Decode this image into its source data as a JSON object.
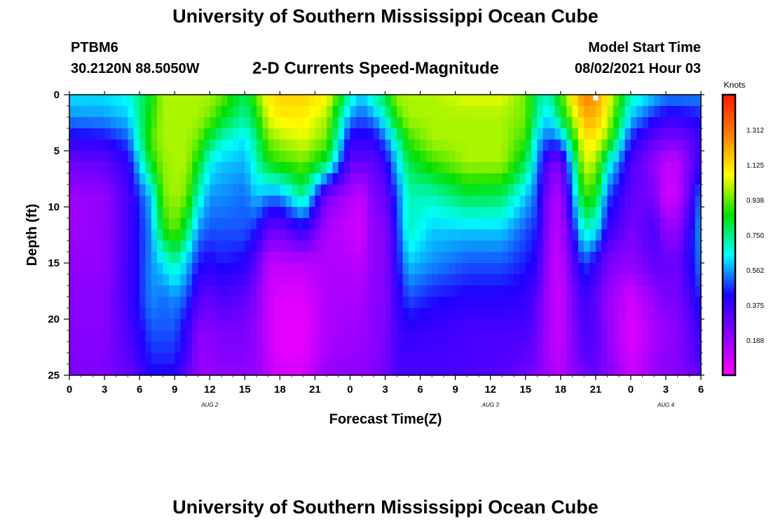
{
  "header": {
    "title": "University of Southern Mississippi Ocean Cube",
    "station_id": "PTBM6",
    "station_coords": "30.2120N  88.5050W",
    "product_title": "2-D Currents Speed-Magnitude",
    "model_start_label": "Model Start Time",
    "model_start_time": "08/02/2021 Hour 03"
  },
  "footer": {
    "title": "University of Southern Mississippi Ocean Cube"
  },
  "chart_data": {
    "type": "heatmap",
    "title": "2-D Currents Speed-Magnitude",
    "xlabel": "Forecast Time(Z)",
    "ylabel": "Depth (ft)",
    "x_tick_labels": [
      "0",
      "3",
      "6",
      "9",
      "12",
      "15",
      "18",
      "21",
      "0",
      "3",
      "6",
      "9",
      "12",
      "15",
      "18",
      "21",
      "0",
      "3",
      "6"
    ],
    "x_date_labels": [
      {
        "label": "AUG 2",
        "hour": 12
      },
      {
        "label": "AUG 3",
        "hour": 36
      },
      {
        "label": "AUG 4",
        "hour": 51
      }
    ],
    "xlim_hours": [
      0,
      54
    ],
    "ylim_ft": [
      0,
      25
    ],
    "y_ticks": [
      0,
      5,
      10,
      15,
      20,
      25
    ],
    "y_reversed": true,
    "colorbar": {
      "unit": "Knots",
      "range": [
        0,
        1.5
      ],
      "tick_values": [
        1.312,
        1.125,
        0.938,
        0.75,
        0.562,
        0.375,
        0.188
      ],
      "tick_labels": [
        "1.312",
        "1.125",
        "0.938",
        "0.750",
        "0.562",
        "0.375",
        "0.188"
      ],
      "colors": [
        "#ff00ff",
        "#8c00ff",
        "#2000ff",
        "#00ffff",
        "#00e000",
        "#ffff00",
        "#ff8000",
        "#ff1a00"
      ]
    },
    "sample_depths_ft": [
      0,
      2,
      4,
      6,
      9,
      12,
      15,
      18,
      21,
      24,
      25
    ],
    "series": [
      {
        "hour": 0,
        "values": [
          0.62,
          0.55,
          0.4,
          0.28,
          0.18,
          0.18,
          0.2,
          0.22,
          0.22,
          0.24,
          0.24
        ]
      },
      {
        "hour": 3,
        "values": [
          0.62,
          0.56,
          0.42,
          0.3,
          0.2,
          0.2,
          0.2,
          0.22,
          0.22,
          0.24,
          0.24
        ]
      },
      {
        "hour": 5,
        "values": [
          0.65,
          0.6,
          0.5,
          0.4,
          0.35,
          0.35,
          0.36,
          0.36,
          0.34,
          0.3,
          0.28
        ]
      },
      {
        "hour": 7,
        "values": [
          0.85,
          0.88,
          0.92,
          0.85,
          0.6,
          0.55,
          0.55,
          0.55,
          0.5,
          0.45,
          0.42
        ]
      },
      {
        "hour": 8,
        "values": [
          1.0,
          1.0,
          1.0,
          0.98,
          0.95,
          0.85,
          0.62,
          0.52,
          0.5,
          0.45,
          0.42
        ]
      },
      {
        "hour": 9,
        "values": [
          1.0,
          1.0,
          1.0,
          1.0,
          1.0,
          0.95,
          0.72,
          0.55,
          0.5,
          0.45,
          0.4
        ]
      },
      {
        "hour": 10,
        "values": [
          1.0,
          1.0,
          1.0,
          1.0,
          0.95,
          0.8,
          0.6,
          0.5,
          0.4,
          0.35,
          0.3
        ]
      },
      {
        "hour": 11,
        "values": [
          1.0,
          1.0,
          0.95,
          0.85,
          0.7,
          0.55,
          0.45,
          0.35,
          0.22,
          0.2,
          0.2
        ]
      },
      {
        "hour": 12,
        "values": [
          1.0,
          0.95,
          0.8,
          0.65,
          0.55,
          0.5,
          0.42,
          0.3,
          0.22,
          0.2,
          0.2
        ]
      },
      {
        "hour": 13,
        "values": [
          0.95,
          0.85,
          0.7,
          0.6,
          0.55,
          0.5,
          0.45,
          0.35,
          0.25,
          0.22,
          0.2
        ]
      },
      {
        "hour": 15,
        "values": [
          0.78,
          0.72,
          0.62,
          0.58,
          0.52,
          0.5,
          0.42,
          0.3,
          0.25,
          0.22,
          0.2
        ]
      },
      {
        "hour": 16,
        "values": [
          0.95,
          0.85,
          0.75,
          0.7,
          0.6,
          0.45,
          0.3,
          0.22,
          0.2,
          0.2,
          0.2
        ]
      },
      {
        "hour": 17,
        "values": [
          1.1,
          1.05,
          0.95,
          0.85,
          0.55,
          0.3,
          0.12,
          0.1,
          0.1,
          0.12,
          0.14
        ]
      },
      {
        "hour": 18,
        "values": [
          1.15,
          1.1,
          1.0,
          0.9,
          0.55,
          0.28,
          0.12,
          0.06,
          0.04,
          0.06,
          0.08
        ]
      },
      {
        "hour": 20,
        "values": [
          1.15,
          1.1,
          1.05,
          0.95,
          0.75,
          0.4,
          0.12,
          0.06,
          0.04,
          0.06,
          0.1
        ]
      },
      {
        "hour": 22,
        "values": [
          1.1,
          1.0,
          0.95,
          0.8,
          0.25,
          0.15,
          0.15,
          0.15,
          0.15,
          0.18,
          0.2
        ]
      },
      {
        "hour": 24,
        "values": [
          0.7,
          0.55,
          0.4,
          0.3,
          0.15,
          0.1,
          0.14,
          0.16,
          0.18,
          0.2,
          0.22
        ]
      },
      {
        "hour": 25,
        "values": [
          0.6,
          0.5,
          0.4,
          0.3,
          0.1,
          0.08,
          0.12,
          0.16,
          0.18,
          0.2,
          0.22
        ]
      },
      {
        "hour": 26,
        "values": [
          0.72,
          0.55,
          0.4,
          0.3,
          0.25,
          0.22,
          0.22,
          0.22,
          0.22,
          0.22,
          0.24
        ]
      },
      {
        "hour": 27,
        "values": [
          0.8,
          0.68,
          0.52,
          0.4,
          0.28,
          0.22,
          0.22,
          0.22,
          0.24,
          0.26,
          0.28
        ]
      },
      {
        "hour": 28,
        "values": [
          1.0,
          0.9,
          0.7,
          0.6,
          0.5,
          0.45,
          0.42,
          0.38,
          0.35,
          0.35,
          0.35
        ]
      },
      {
        "hour": 29,
        "values": [
          1.0,
          1.0,
          0.9,
          0.8,
          0.7,
          0.7,
          0.6,
          0.5,
          0.4,
          0.35,
          0.35
        ]
      },
      {
        "hour": 31,
        "values": [
          1.0,
          1.0,
          1.0,
          0.9,
          0.7,
          0.6,
          0.55,
          0.45,
          0.38,
          0.35,
          0.35
        ]
      },
      {
        "hour": 34,
        "values": [
          1.05,
          1.0,
          1.0,
          1.0,
          0.8,
          0.6,
          0.5,
          0.42,
          0.35,
          0.35,
          0.35
        ]
      },
      {
        "hour": 37,
        "values": [
          1.05,
          1.0,
          1.0,
          1.0,
          0.78,
          0.6,
          0.5,
          0.42,
          0.35,
          0.33,
          0.32
        ]
      },
      {
        "hour": 39,
        "values": [
          0.95,
          0.95,
          0.9,
          0.8,
          0.6,
          0.5,
          0.45,
          0.4,
          0.35,
          0.3,
          0.28
        ]
      },
      {
        "hour": 40,
        "values": [
          0.75,
          0.72,
          0.6,
          0.55,
          0.5,
          0.45,
          0.4,
          0.32,
          0.28,
          0.25,
          0.22
        ]
      },
      {
        "hour": 41,
        "values": [
          0.7,
          0.6,
          0.5,
          0.3,
          0.2,
          0.18,
          0.16,
          0.15,
          0.15,
          0.15,
          0.18
        ]
      },
      {
        "hour": 42,
        "values": [
          0.9,
          0.8,
          0.55,
          0.25,
          0.15,
          0.12,
          0.1,
          0.1,
          0.1,
          0.12,
          0.15
        ]
      },
      {
        "hour": 44,
        "values": [
          1.3,
          1.2,
          1.1,
          1.05,
          0.9,
          0.7,
          0.5,
          0.38,
          0.35,
          0.3,
          0.25
        ]
      },
      {
        "hour": 45,
        "values": [
          1.25,
          1.2,
          1.1,
          1.0,
          0.85,
          0.65,
          0.4,
          0.3,
          0.32,
          0.3,
          0.28
        ]
      },
      {
        "hour": 46,
        "values": [
          1.1,
          1.05,
          0.95,
          0.7,
          0.5,
          0.4,
          0.25,
          0.2,
          0.2,
          0.22,
          0.25
        ]
      },
      {
        "hour": 48,
        "values": [
          0.7,
          0.6,
          0.45,
          0.35,
          0.3,
          0.25,
          0.2,
          0.08,
          0.06,
          0.08,
          0.1
        ]
      },
      {
        "hour": 50,
        "values": [
          0.6,
          0.45,
          0.3,
          0.2,
          0.25,
          0.35,
          0.3,
          0.2,
          0.15,
          0.18,
          0.2
        ]
      },
      {
        "hour": 51,
        "values": [
          0.55,
          0.4,
          0.25,
          0.12,
          0.08,
          0.2,
          0.3,
          0.25,
          0.2,
          0.22,
          0.22
        ]
      },
      {
        "hour": 52,
        "values": [
          0.55,
          0.4,
          0.25,
          0.12,
          0.1,
          0.2,
          0.28,
          0.25,
          0.22,
          0.22,
          0.22
        ]
      },
      {
        "hour": 53,
        "values": [
          0.55,
          0.42,
          0.3,
          0.25,
          0.3,
          0.4,
          0.4,
          0.35,
          0.3,
          0.28,
          0.25
        ]
      },
      {
        "hour": 54,
        "values": [
          0.55,
          0.45,
          0.4,
          0.4,
          0.55,
          0.58,
          0.55,
          0.48,
          0.4,
          0.35,
          0.3
        ]
      }
    ],
    "marker": {
      "hour": 45,
      "depth_ft": 0.3
    }
  }
}
